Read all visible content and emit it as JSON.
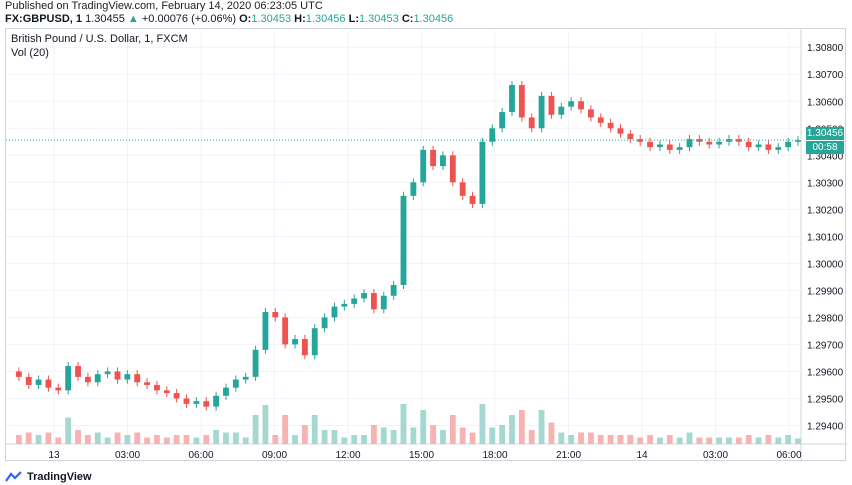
{
  "header": {
    "published": "Published on TradingView.com, February 14, 2020 06:23:05 UTC",
    "symbol": "FX:GBPUSD, 1",
    "last": "1.30455",
    "change": "+0.00076 (+0.06%)",
    "open_label": "O:",
    "open": "1.30453",
    "high_label": "H:",
    "high": "1.30456",
    "low_label": "L:",
    "low": "1.30453",
    "close_label": "C:",
    "close": "1.30456"
  },
  "legend": {
    "title": "British Pound / U.S. Dollar, 1, FXCM",
    "volume": "Vol (20)"
  },
  "price_labels": {
    "current": "1.30456",
    "countdown": "00:58"
  },
  "footer": {
    "brand": "TradingView"
  },
  "colors": {
    "up": "#26a69a",
    "down": "#ef5350",
    "up_vol": "#a6d8d2",
    "down_vol": "#f7b3b2",
    "grid": "#f0f3fa"
  },
  "chart_data": {
    "type": "line",
    "ylim": [
      1.2935,
      1.3086
    ],
    "y_ticks": [
      "1.30800",
      "1.30700",
      "1.30600",
      "1.30500",
      "1.30400",
      "1.30300",
      "1.30200",
      "1.30100",
      "1.30000",
      "1.29900",
      "1.29800",
      "1.29700",
      "1.29600",
      "1.29500",
      "1.29400"
    ],
    "x_ticks": [
      "13",
      "03:00",
      "06:00",
      "09:00",
      "12:00",
      "15:00",
      "18:00",
      "21:00",
      "14",
      "03:00",
      "06:00"
    ],
    "series": [
      {
        "values": [
          1.296,
          1.2958,
          1.2955,
          1.2957,
          1.2954,
          1.2953,
          1.2962,
          1.2958,
          1.2956,
          1.2959,
          1.296,
          1.2957,
          1.2959,
          1.2956,
          1.2955,
          1.2953,
          1.2952,
          1.295,
          1.2948,
          1.2949,
          1.2947,
          1.2951,
          1.2954,
          1.2957,
          1.2958,
          1.2968,
          1.2982,
          1.298,
          1.297,
          1.2972,
          1.2966,
          1.2976,
          1.298,
          1.2984,
          1.2985,
          1.2987,
          1.2989,
          1.2983,
          1.2988,
          1.2992,
          1.3025,
          1.303,
          1.3042,
          1.3036,
          1.304,
          1.303,
          1.3025,
          1.3022,
          1.3045,
          1.305,
          1.3056,
          1.3066,
          1.3054,
          1.305,
          1.3062,
          1.3055,
          1.3058,
          1.306,
          1.3057,
          1.3054,
          1.3052,
          1.305,
          1.3048,
          1.3046,
          1.3045,
          1.3043,
          1.3044,
          1.3042,
          1.3043,
          1.3046,
          1.3045,
          1.3044,
          1.3045,
          1.3046,
          1.3045,
          1.3043,
          1.3044,
          1.3042,
          1.3043,
          1.3045,
          1.30456
        ]
      }
    ]
  }
}
